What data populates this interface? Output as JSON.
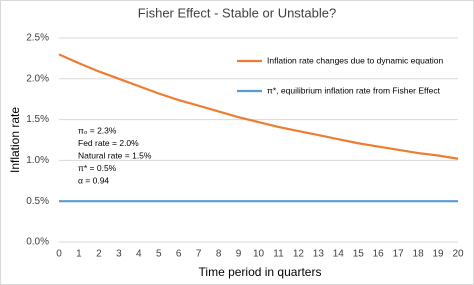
{
  "chart_data": {
    "type": "line",
    "title": "Fisher Effect - Stable or Unstable?",
    "x_label": "Time period in quarters",
    "y_label": "Inflation rate",
    "x": [
      0,
      1,
      2,
      3,
      4,
      5,
      6,
      7,
      8,
      9,
      10,
      11,
      12,
      13,
      14,
      15,
      16,
      17,
      18,
      19,
      20
    ],
    "series": [
      {
        "name": "Inflation rate changes due to dynamic equation",
        "color": "#ed7d31",
        "values": [
          2.3,
          2.19,
          2.09,
          2.0,
          1.91,
          1.82,
          1.74,
          1.67,
          1.6,
          1.53,
          1.47,
          1.41,
          1.36,
          1.31,
          1.26,
          1.21,
          1.17,
          1.13,
          1.09,
          1.06,
          1.02
        ]
      },
      {
        "name": "π*, equilibrium inflation rate from Fisher Effect",
        "color": "#5b9bd5",
        "values": [
          0.5,
          0.5,
          0.5,
          0.5,
          0.5,
          0.5,
          0.5,
          0.5,
          0.5,
          0.5,
          0.5,
          0.5,
          0.5,
          0.5,
          0.5,
          0.5,
          0.5,
          0.5,
          0.5,
          0.5,
          0.5
        ]
      }
    ],
    "xlim": [
      0,
      20
    ],
    "xticks": [
      0,
      1,
      2,
      3,
      4,
      5,
      6,
      7,
      8,
      9,
      10,
      11,
      12,
      13,
      14,
      15,
      16,
      17,
      18,
      19,
      20
    ],
    "ylim": [
      0,
      2.5
    ],
    "yticks": [
      {
        "value": 0,
        "label": "0.0%"
      },
      {
        "value": 0.5,
        "label": "0.5%"
      },
      {
        "value": 1,
        "label": "1.0%"
      },
      {
        "value": 1.5,
        "label": "1.5%"
      },
      {
        "value": 2,
        "label": "2.0%"
      },
      {
        "value": 2.5,
        "label": "2.5%"
      }
    ],
    "grid": true,
    "annotations": [
      "π₀ = 2.3%",
      "Fed rate = 2.0%",
      "Natural rate = 1.5%",
      "π* = 0.5%",
      "α = 0.94"
    ]
  }
}
